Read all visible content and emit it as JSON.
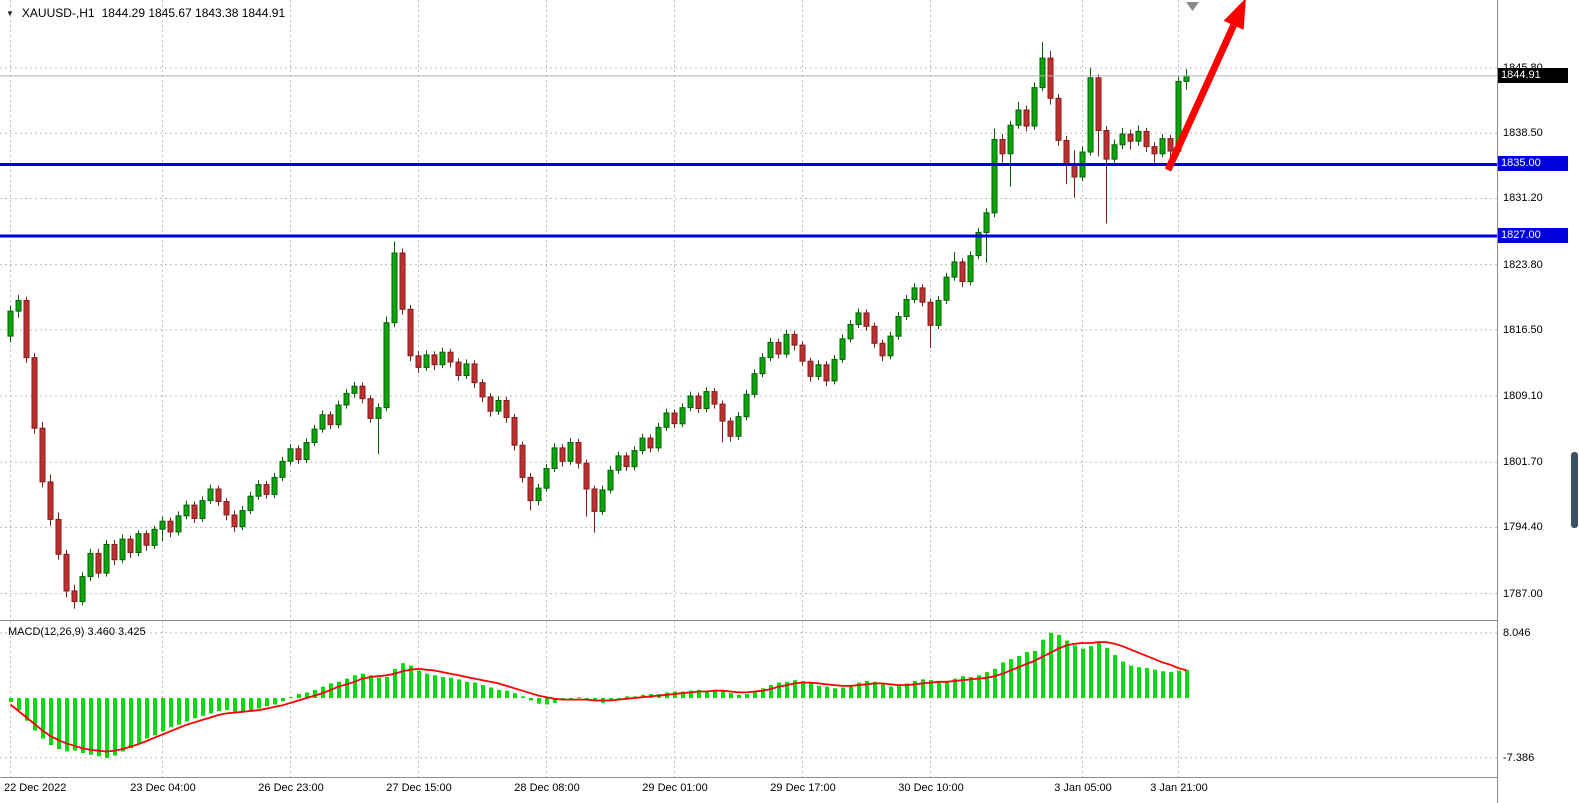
{
  "title": {
    "symbol": "XAUUSD-,H1",
    "ohlc": "1844.29 1845.67 1843.38 1844.91"
  },
  "colors": {
    "candle_up": "#0ca50c",
    "candle_up_border": "#046004",
    "candle_down": "#bf3030",
    "candle_down_border": "#7e1e1e",
    "macd_hist": "#00dd00",
    "macd_signal": "#ff0000",
    "level_line": "#0000dd",
    "bid_line": "#b3b3b3",
    "arrow": "#ff0000",
    "shift_marker": "#8a8a8a",
    "scrollbar": "#3d5166"
  },
  "chart_data": {
    "type": "candlestick",
    "symbol": "XAUUSD",
    "timeframe": "H1",
    "current": {
      "open": 1844.29,
      "high": 1845.67,
      "low": 1843.38,
      "close": 1844.91
    },
    "main_ylim": [
      1784.05,
      1853.4
    ],
    "macd_ylim": [
      -9.75,
      9.51
    ],
    "price_axis": [
      {
        "label": "1845.80",
        "value": 1845.8
      },
      {
        "label": "1838.50",
        "value": 1838.5
      },
      {
        "label": "1831.20",
        "value": 1831.2
      },
      {
        "label": "1823.80",
        "value": 1823.8
      },
      {
        "label": "1816.50",
        "value": 1816.5
      },
      {
        "label": "1809.10",
        "value": 1809.1
      },
      {
        "label": "1801.70",
        "value": 1801.7
      },
      {
        "label": "1794.40",
        "value": 1794.4
      },
      {
        "label": "1787.00",
        "value": 1787.0
      }
    ],
    "hlines": [
      {
        "label": "1835.00",
        "value": 1835.0
      },
      {
        "label": "1827.00",
        "value": 1827.0
      }
    ],
    "bid": {
      "label": "1844.91",
      "value": 1844.91
    },
    "time_labels": [
      {
        "index": 0,
        "label": "22 Dec 2022"
      },
      {
        "index": 19,
        "label": "23 Dec 04:00"
      },
      {
        "index": 35,
        "label": "26 Dec 23:00"
      },
      {
        "index": 51,
        "label": "27 Dec 15:00"
      },
      {
        "index": 67,
        "label": "28 Dec 08:00"
      },
      {
        "index": 83,
        "label": "29 Dec 01:00"
      },
      {
        "index": 99,
        "label": "29 Dec 17:00"
      },
      {
        "index": 115,
        "label": "30 Dec 10:00"
      },
      {
        "index": 134,
        "label": "3 Jan 05:00"
      },
      {
        "index": 146,
        "label": "3 Jan 21:00"
      }
    ],
    "candles": [
      [
        1815.8,
        1819.2,
        1815.1,
        1818.6
      ],
      [
        1818.6,
        1820.4,
        1817.9,
        1819.8
      ],
      [
        1819.8,
        1820.2,
        1812.8,
        1813.4
      ],
      [
        1813.4,
        1813.9,
        1804.9,
        1805.5
      ],
      [
        1805.5,
        1806.2,
        1798.9,
        1799.5
      ],
      [
        1799.5,
        1800.3,
        1794.6,
        1795.3
      ],
      [
        1795.3,
        1796.1,
        1790.8,
        1791.4
      ],
      [
        1791.4,
        1791.9,
        1786.6,
        1787.3
      ],
      [
        1787.3,
        1788.0,
        1785.3,
        1786.1
      ],
      [
        1786.1,
        1789.4,
        1785.7,
        1788.9
      ],
      [
        1788.9,
        1792.0,
        1788.4,
        1791.5
      ],
      [
        1791.5,
        1792.0,
        1788.8,
        1789.3
      ],
      [
        1789.3,
        1793.0,
        1788.9,
        1792.5
      ],
      [
        1792.5,
        1793.0,
        1790.2,
        1790.8
      ],
      [
        1790.8,
        1793.6,
        1790.4,
        1793.1
      ],
      [
        1793.1,
        1793.5,
        1791.0,
        1791.6
      ],
      [
        1791.6,
        1794.1,
        1791.2,
        1793.7
      ],
      [
        1793.7,
        1794.1,
        1791.8,
        1792.4
      ],
      [
        1792.4,
        1794.6,
        1792.0,
        1794.2
      ],
      [
        1794.2,
        1795.6,
        1792.9,
        1795.1
      ],
      [
        1795.1,
        1795.5,
        1793.3,
        1793.9
      ],
      [
        1793.9,
        1796.2,
        1793.5,
        1795.7
      ],
      [
        1795.7,
        1797.4,
        1795.3,
        1796.9
      ],
      [
        1796.9,
        1797.3,
        1794.9,
        1795.4
      ],
      [
        1795.4,
        1797.9,
        1795.0,
        1797.4
      ],
      [
        1797.4,
        1799.2,
        1797.0,
        1798.7
      ],
      [
        1798.7,
        1799.1,
        1796.8,
        1797.3
      ],
      [
        1797.3,
        1797.7,
        1795.2,
        1795.8
      ],
      [
        1795.8,
        1796.3,
        1793.9,
        1794.5
      ],
      [
        1794.5,
        1796.8,
        1794.1,
        1796.3
      ],
      [
        1796.3,
        1798.4,
        1795.9,
        1797.9
      ],
      [
        1797.9,
        1799.7,
        1797.5,
        1799.2
      ],
      [
        1799.2,
        1799.6,
        1797.6,
        1798.1
      ],
      [
        1798.1,
        1800.5,
        1797.7,
        1800.0
      ],
      [
        1800.0,
        1802.3,
        1799.6,
        1801.8
      ],
      [
        1801.8,
        1803.7,
        1801.4,
        1803.2
      ],
      [
        1803.2,
        1803.6,
        1801.5,
        1802.0
      ],
      [
        1802.0,
        1804.4,
        1801.6,
        1803.9
      ],
      [
        1803.9,
        1805.9,
        1803.5,
        1805.4
      ],
      [
        1805.4,
        1807.5,
        1805.0,
        1807.0
      ],
      [
        1807.0,
        1807.4,
        1805.4,
        1805.9
      ],
      [
        1805.9,
        1808.6,
        1805.5,
        1808.1
      ],
      [
        1808.1,
        1809.9,
        1807.7,
        1809.4
      ],
      [
        1809.4,
        1810.7,
        1808.9,
        1810.2
      ],
      [
        1810.2,
        1810.6,
        1808.3,
        1808.8
      ],
      [
        1808.8,
        1809.2,
        1806.1,
        1806.6
      ],
      [
        1806.6,
        1808.3,
        1802.6,
        1807.8
      ],
      [
        1807.8,
        1818.0,
        1807.4,
        1817.3
      ],
      [
        1817.3,
        1826.4,
        1816.8,
        1825.1
      ],
      [
        1825.1,
        1825.6,
        1818.2,
        1818.8
      ],
      [
        1818.8,
        1819.3,
        1813.0,
        1813.6
      ],
      [
        1813.6,
        1814.1,
        1811.7,
        1812.3
      ],
      [
        1812.3,
        1814.2,
        1811.9,
        1813.7
      ],
      [
        1813.7,
        1814.1,
        1812.0,
        1812.6
      ],
      [
        1812.6,
        1814.5,
        1812.2,
        1814.0
      ],
      [
        1814.0,
        1814.4,
        1812.3,
        1812.9
      ],
      [
        1812.9,
        1813.3,
        1810.8,
        1811.4
      ],
      [
        1811.4,
        1813.2,
        1811.0,
        1812.7
      ],
      [
        1812.7,
        1813.1,
        1810.0,
        1810.6
      ],
      [
        1810.6,
        1811.0,
        1808.4,
        1809.0
      ],
      [
        1809.0,
        1809.4,
        1806.8,
        1807.4
      ],
      [
        1807.4,
        1809.1,
        1807.0,
        1808.6
      ],
      [
        1808.6,
        1809.0,
        1806.1,
        1806.7
      ],
      [
        1806.7,
        1807.1,
        1803.0,
        1803.6
      ],
      [
        1803.6,
        1804.0,
        1799.4,
        1800.0
      ],
      [
        1800.0,
        1800.5,
        1796.3,
        1797.4
      ],
      [
        1797.4,
        1799.3,
        1796.9,
        1798.8
      ],
      [
        1798.8,
        1801.5,
        1798.4,
        1801.0
      ],
      [
        1801.0,
        1803.8,
        1800.6,
        1803.3
      ],
      [
        1803.3,
        1803.7,
        1801.2,
        1801.8
      ],
      [
        1801.8,
        1804.4,
        1801.4,
        1803.9
      ],
      [
        1803.9,
        1804.3,
        1801.0,
        1801.6
      ],
      [
        1801.6,
        1802.0,
        1795.6,
        1798.7
      ],
      [
        1798.7,
        1799.1,
        1793.8,
        1796.2
      ],
      [
        1796.2,
        1799.1,
        1795.8,
        1798.6
      ],
      [
        1798.6,
        1801.3,
        1798.2,
        1800.8
      ],
      [
        1800.8,
        1802.9,
        1800.4,
        1802.4
      ],
      [
        1802.4,
        1802.8,
        1800.7,
        1801.2
      ],
      [
        1801.2,
        1803.5,
        1800.8,
        1803.0
      ],
      [
        1803.0,
        1804.9,
        1802.6,
        1804.4
      ],
      [
        1804.4,
        1804.8,
        1802.8,
        1803.3
      ],
      [
        1803.3,
        1806.1,
        1802.9,
        1805.6
      ],
      [
        1805.6,
        1807.7,
        1805.2,
        1807.2
      ],
      [
        1807.2,
        1807.6,
        1805.5,
        1806.0
      ],
      [
        1806.0,
        1808.3,
        1805.6,
        1807.8
      ],
      [
        1807.8,
        1809.6,
        1807.4,
        1809.1
      ],
      [
        1809.1,
        1809.5,
        1807.2,
        1807.7
      ],
      [
        1807.7,
        1810.1,
        1807.3,
        1809.6
      ],
      [
        1809.6,
        1810.0,
        1807.7,
        1808.2
      ],
      [
        1808.2,
        1808.6,
        1803.9,
        1806.3
      ],
      [
        1806.3,
        1806.7,
        1804.0,
        1804.6
      ],
      [
        1804.6,
        1807.3,
        1804.2,
        1806.8
      ],
      [
        1806.8,
        1809.8,
        1806.4,
        1809.3
      ],
      [
        1809.3,
        1812.1,
        1808.9,
        1811.6
      ],
      [
        1811.6,
        1813.9,
        1811.2,
        1813.4
      ],
      [
        1813.4,
        1815.6,
        1813.0,
        1815.1
      ],
      [
        1815.1,
        1815.5,
        1813.3,
        1813.8
      ],
      [
        1813.8,
        1816.5,
        1813.4,
        1816.0
      ],
      [
        1816.0,
        1816.4,
        1814.2,
        1814.8
      ],
      [
        1814.8,
        1815.2,
        1812.5,
        1813.0
      ],
      [
        1813.0,
        1813.4,
        1810.7,
        1811.3
      ],
      [
        1811.3,
        1813.1,
        1810.9,
        1812.6
      ],
      [
        1812.6,
        1813.0,
        1810.2,
        1810.8
      ],
      [
        1810.8,
        1813.7,
        1810.4,
        1813.2
      ],
      [
        1813.2,
        1816.0,
        1812.8,
        1815.5
      ],
      [
        1815.5,
        1817.6,
        1815.1,
        1817.1
      ],
      [
        1817.1,
        1818.9,
        1816.7,
        1818.4
      ],
      [
        1818.4,
        1818.8,
        1816.4,
        1816.9
      ],
      [
        1816.9,
        1817.3,
        1814.5,
        1815.0
      ],
      [
        1815.0,
        1815.4,
        1813.0,
        1813.6
      ],
      [
        1813.6,
        1816.3,
        1813.2,
        1815.8
      ],
      [
        1815.8,
        1818.5,
        1815.4,
        1818.0
      ],
      [
        1818.0,
        1820.4,
        1817.6,
        1819.9
      ],
      [
        1819.9,
        1821.7,
        1819.5,
        1821.2
      ],
      [
        1821.2,
        1821.6,
        1819.1,
        1819.6
      ],
      [
        1819.6,
        1820.0,
        1814.5,
        1817.0
      ],
      [
        1817.0,
        1820.3,
        1816.6,
        1819.8
      ],
      [
        1819.8,
        1822.9,
        1819.4,
        1822.4
      ],
      [
        1822.4,
        1825.2,
        1822.0,
        1824.1
      ],
      [
        1824.1,
        1824.5,
        1821.3,
        1821.9
      ],
      [
        1821.9,
        1825.3,
        1821.5,
        1824.8
      ],
      [
        1824.8,
        1827.9,
        1824.4,
        1827.4
      ],
      [
        1827.4,
        1830.1,
        1824.0,
        1829.6
      ],
      [
        1829.6,
        1839.0,
        1829.1,
        1837.8
      ],
      [
        1837.8,
        1838.4,
        1835.2,
        1836.2
      ],
      [
        1836.2,
        1839.9,
        1832.5,
        1839.4
      ],
      [
        1839.4,
        1842.0,
        1839.0,
        1841.1
      ],
      [
        1841.1,
        1841.6,
        1838.7,
        1839.3
      ],
      [
        1839.3,
        1844.2,
        1838.9,
        1843.6
      ],
      [
        1843.6,
        1848.7,
        1843.2,
        1846.9
      ],
      [
        1846.9,
        1847.7,
        1841.7,
        1842.4
      ],
      [
        1842.4,
        1842.9,
        1837.1,
        1837.7
      ],
      [
        1837.7,
        1838.2,
        1832.8,
        1835.0
      ],
      [
        1835.0,
        1836.6,
        1831.3,
        1833.6
      ],
      [
        1833.6,
        1837.0,
        1833.2,
        1836.4
      ],
      [
        1836.4,
        1845.8,
        1836.0,
        1844.7
      ],
      [
        1844.7,
        1845.1,
        1835.9,
        1838.8
      ],
      [
        1838.8,
        1839.3,
        1828.4,
        1835.6
      ],
      [
        1835.6,
        1837.8,
        1835.1,
        1837.2
      ],
      [
        1837.2,
        1839.1,
        1836.7,
        1838.4
      ],
      [
        1838.4,
        1838.9,
        1836.7,
        1837.6
      ],
      [
        1837.6,
        1839.4,
        1837.1,
        1838.7
      ],
      [
        1838.7,
        1839.1,
        1836.4,
        1837.0
      ],
      [
        1837.0,
        1837.5,
        1834.9,
        1836.2
      ],
      [
        1836.2,
        1838.4,
        1835.8,
        1837.9
      ],
      [
        1837.9,
        1838.3,
        1835.9,
        1836.5
      ],
      [
        1836.5,
        1844.8,
        1836.1,
        1844.3
      ],
      [
        1844.29,
        1845.67,
        1843.38,
        1844.91
      ]
    ],
    "macd": {
      "label": "MACD(12,26,9) 3.460 3.425",
      "macd_value": 3.46,
      "signal_value": 3.425,
      "axis": [
        {
          "label": "8.046",
          "value": 8.046
        },
        {
          "label": "-7.386",
          "value": -7.386
        }
      ],
      "histogram": [
        -0.5,
        -1.5,
        -2.8,
        -4.0,
        -5.0,
        -5.8,
        -6.3,
        -6.6,
        -6.5,
        -6.8,
        -7.0,
        -7.2,
        -7.39,
        -7.1,
        -6.6,
        -6.2,
        -5.6,
        -5.0,
        -4.6,
        -4.1,
        -3.6,
        -3.3,
        -2.9,
        -2.5,
        -2.2,
        -1.9,
        -1.6,
        -1.5,
        -1.7,
        -1.8,
        -1.6,
        -1.3,
        -1.0,
        -0.8,
        -0.4,
        0.1,
        0.5,
        0.7,
        1.0,
        1.4,
        1.8,
        2.0,
        2.4,
        2.8,
        3.0,
        2.8,
        2.5,
        2.6,
        3.6,
        4.3,
        4.0,
        3.4,
        3.0,
        2.8,
        2.6,
        2.5,
        2.3,
        2.0,
        1.9,
        1.6,
        1.3,
        1.0,
        0.9,
        0.6,
        0.2,
        -0.3,
        -0.7,
        -0.8,
        -0.6,
        -0.3,
        -0.1,
        0.1,
        -0.1,
        -0.4,
        -0.6,
        -0.4,
        -0.1,
        0.2,
        0.2,
        0.4,
        0.5,
        0.5,
        0.7,
        0.8,
        0.8,
        0.9,
        1.0,
        0.9,
        1.0,
        0.9,
        0.6,
        0.4,
        0.5,
        0.8,
        1.2,
        1.6,
        1.9,
        2.0,
        2.2,
        2.1,
        1.8,
        1.5,
        1.4,
        1.2,
        1.3,
        1.6,
        1.9,
        2.1,
        2.0,
        1.7,
        1.4,
        1.5,
        1.8,
        2.1,
        2.3,
        2.2,
        1.9,
        2.0,
        2.4,
        2.7,
        2.6,
        2.8,
        3.2,
        3.6,
        4.4,
        4.8,
        5.2,
        5.7,
        5.8,
        7.2,
        8.05,
        7.8,
        7.1,
        6.5,
        6.1,
        6.4,
        7.0,
        6.2,
        5.3,
        4.5,
        4.0,
        3.8,
        3.7,
        3.5,
        3.3,
        3.2,
        3.4,
        3.46
      ],
      "signal": [
        -0.8,
        -1.6,
        -2.4,
        -3.2,
        -4.0,
        -4.7,
        -5.2,
        -5.6,
        -5.9,
        -6.2,
        -6.4,
        -6.5,
        -6.6,
        -6.5,
        -6.3,
        -6.0,
        -5.7,
        -5.3,
        -4.9,
        -4.5,
        -4.1,
        -3.7,
        -3.3,
        -3.0,
        -2.7,
        -2.4,
        -2.1,
        -1.9,
        -1.8,
        -1.7,
        -1.6,
        -1.5,
        -1.3,
        -1.1,
        -0.9,
        -0.6,
        -0.3,
        0.0,
        0.3,
        0.6,
        1.0,
        1.4,
        1.7,
        2.0,
        2.4,
        2.6,
        2.7,
        2.8,
        3.0,
        3.3,
        3.5,
        3.6,
        3.5,
        3.4,
        3.2,
        3.0,
        2.8,
        2.6,
        2.4,
        2.2,
        2.0,
        1.8,
        1.5,
        1.2,
        0.9,
        0.6,
        0.3,
        0.1,
        -0.1,
        -0.2,
        -0.2,
        -0.2,
        -0.2,
        -0.3,
        -0.3,
        -0.3,
        -0.2,
        -0.1,
        0.0,
        0.1,
        0.2,
        0.3,
        0.4,
        0.5,
        0.6,
        0.7,
        0.8,
        0.8,
        0.9,
        0.9,
        0.8,
        0.7,
        0.7,
        0.8,
        0.9,
        1.1,
        1.4,
        1.6,
        1.8,
        1.9,
        1.9,
        1.8,
        1.7,
        1.6,
        1.5,
        1.5,
        1.6,
        1.7,
        1.8,
        1.8,
        1.7,
        1.6,
        1.6,
        1.7,
        1.8,
        1.9,
        2.0,
        2.0,
        2.1,
        2.2,
        2.3,
        2.4,
        2.5,
        2.7,
        3.0,
        3.4,
        3.8,
        4.2,
        4.6,
        5.1,
        5.6,
        6.1,
        6.5,
        6.7,
        6.8,
        6.8,
        6.9,
        6.9,
        6.7,
        6.4,
        6.0,
        5.6,
        5.2,
        4.8,
        4.4,
        4.1,
        3.7,
        3.43
      ]
    },
    "annotations": {
      "trend_arrow": {
        "type": "arrow-up-right",
        "color": "#ff0000"
      }
    }
  }
}
